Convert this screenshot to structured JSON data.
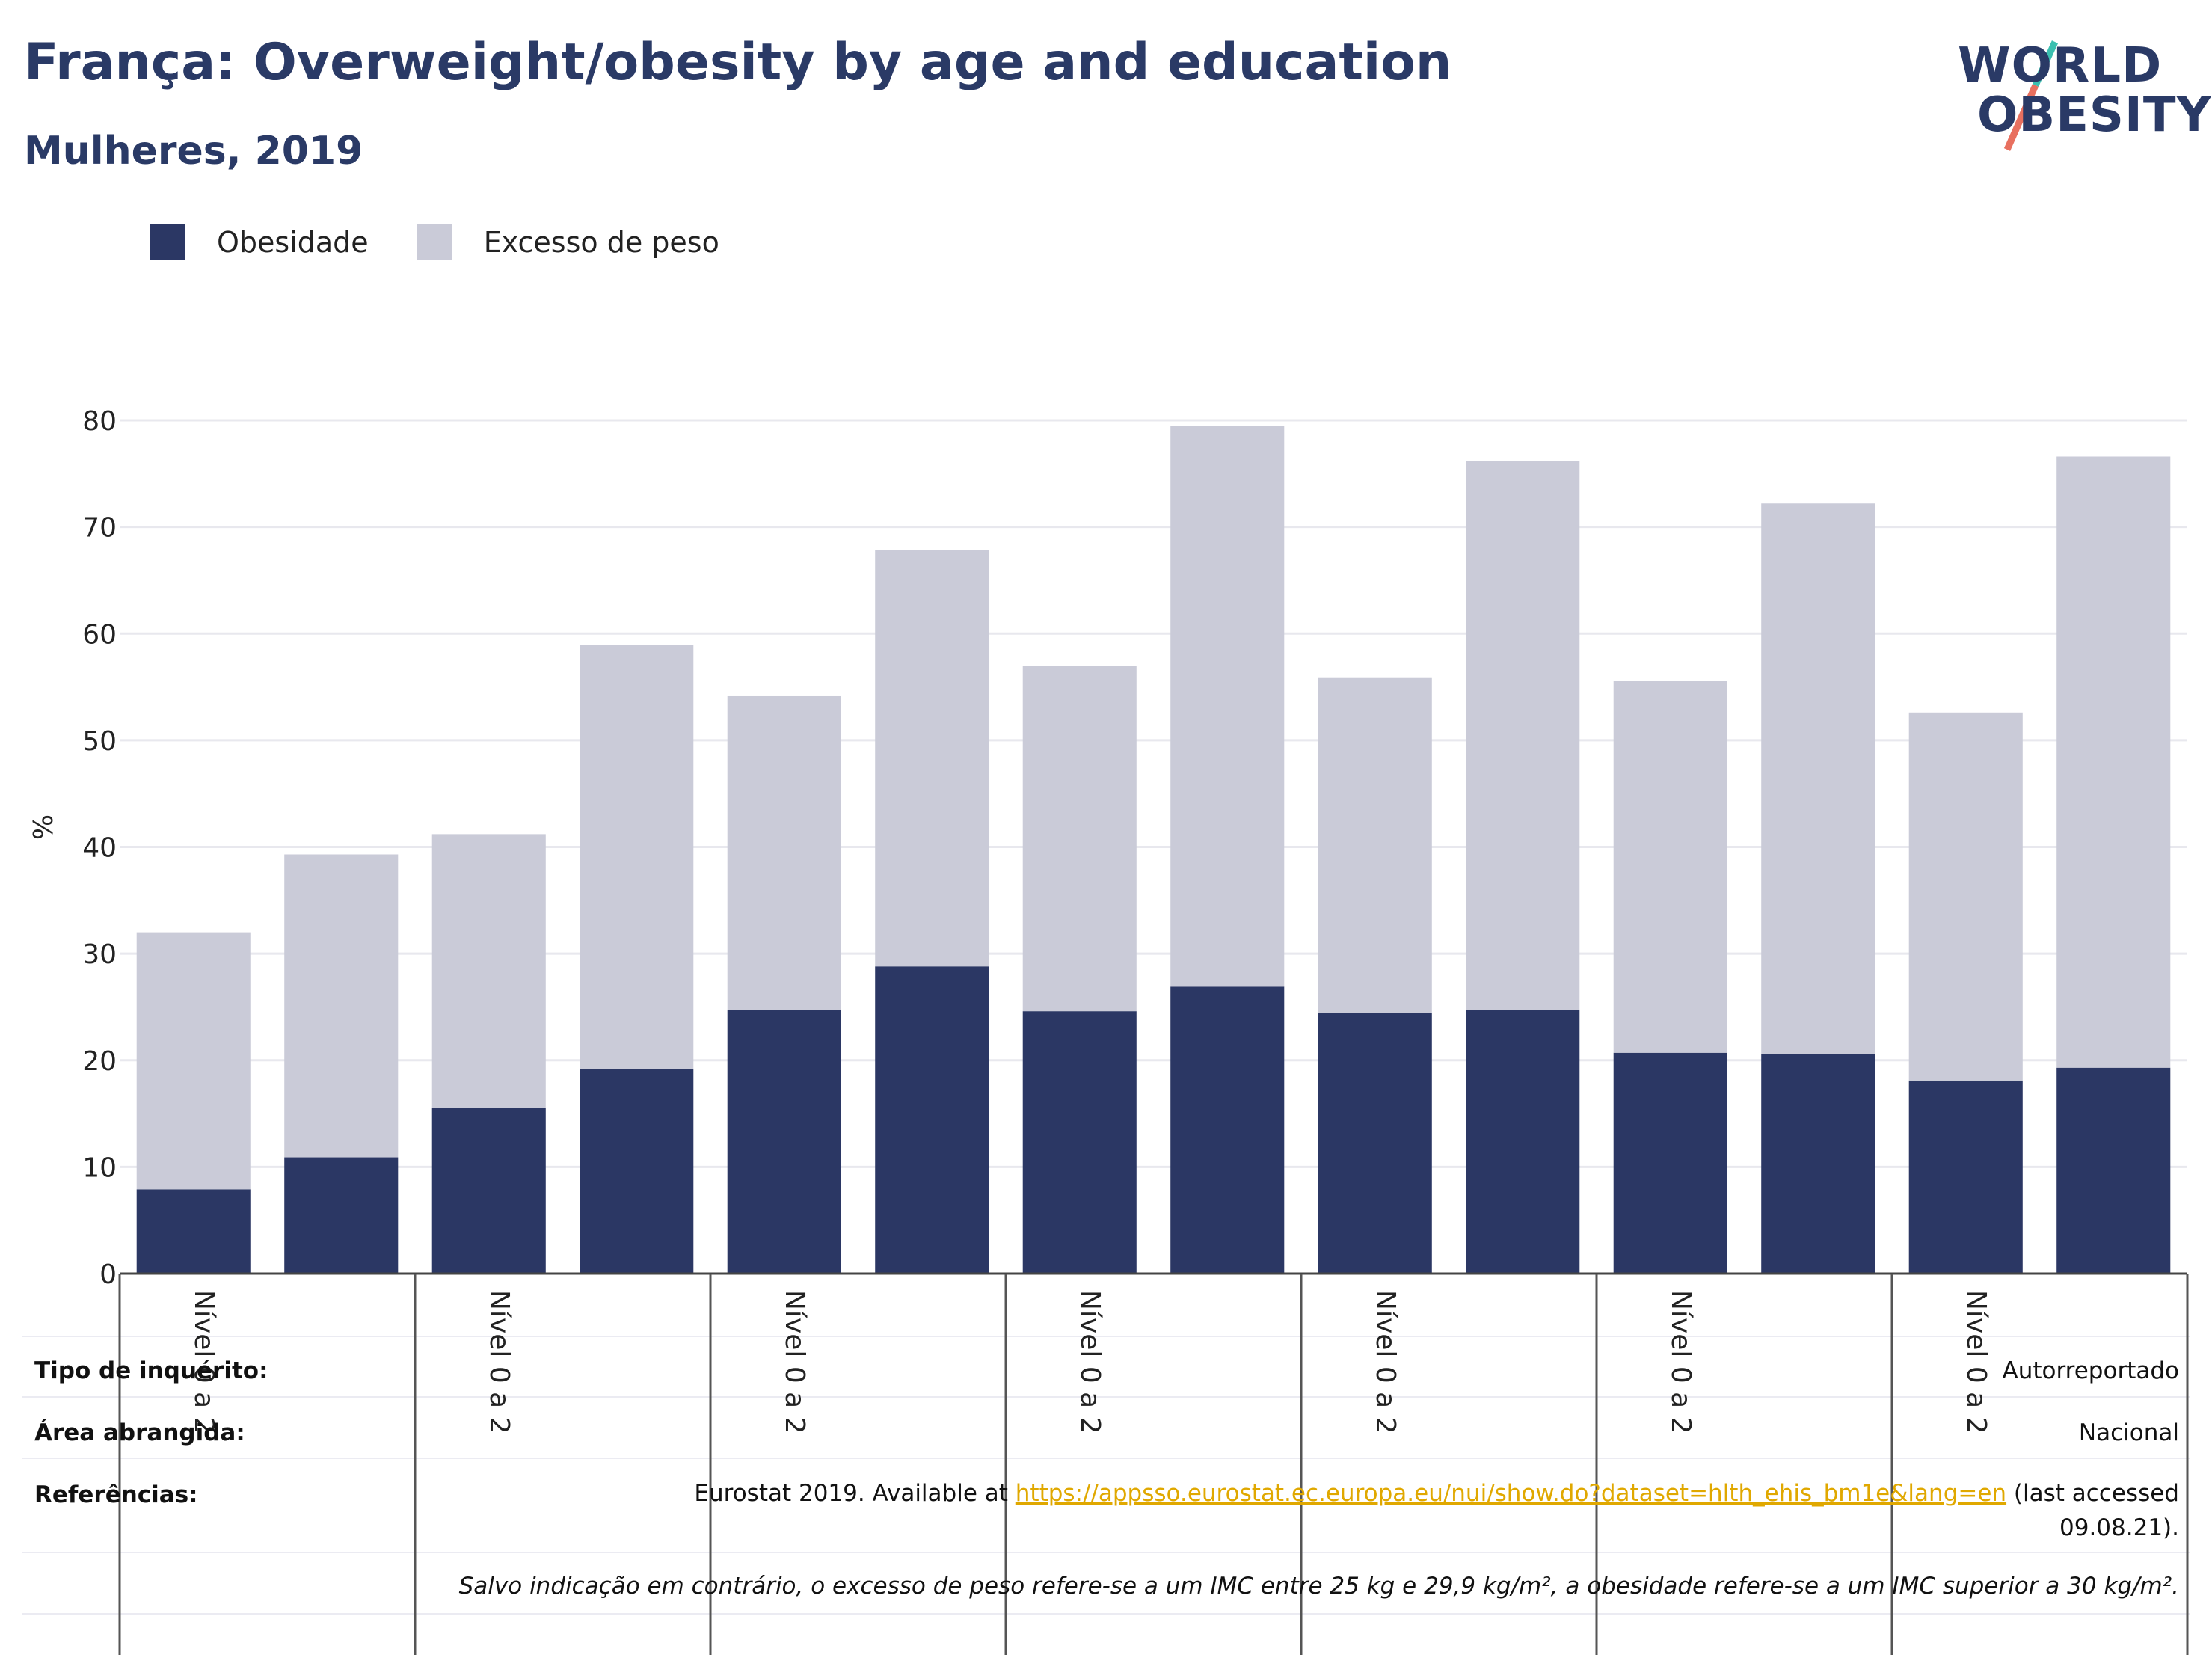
{
  "header": {
    "title": "França: Overweight/obesity by age and education",
    "subtitle": "Mulheres, 2019"
  },
  "logo": {
    "line1": "WORLD",
    "line2": "OBESITY",
    "brand_color": "#2a3a66",
    "slash_colors": [
      "#e8705f",
      "#3bbfb0"
    ]
  },
  "legend": {
    "items": [
      {
        "label": "Obesidade",
        "color": "#2b3764"
      },
      {
        "label": "Excesso de peso",
        "color": "#cacbd8"
      }
    ]
  },
  "chart_data": {
    "type": "bar",
    "stacked": true,
    "ylabel": "%",
    "ylim": [
      0,
      80
    ],
    "yticks": [
      0,
      10,
      20,
      30,
      40,
      50,
      60,
      70,
      80
    ],
    "grid": true,
    "legend_position": "top-left",
    "group_labels": [
      "Nível 0 a 2",
      "Nível 0 a 2",
      "Nível 0 a 2",
      "Nível 0 a 2",
      "Nível 0 a 2",
      "Nível 0 a 2",
      "Nível 0 a 2"
    ],
    "series": [
      {
        "name": "Obesidade",
        "color": "#2b3764",
        "values": [
          7.9,
          10.9,
          15.5,
          19.2,
          24.7,
          28.8,
          24.6,
          26.9,
          24.4,
          24.7,
          20.7,
          20.6,
          18.1,
          19.3
        ]
      },
      {
        "name": "Excesso de peso",
        "color": "#cacbd8",
        "values": [
          24.1,
          28.4,
          25.7,
          39.7,
          29.5,
          39.0,
          32.4,
          52.6,
          31.5,
          51.5,
          34.9,
          51.6,
          34.5,
          57.3
        ]
      }
    ],
    "totals": [
      32.0,
      39.3,
      41.2,
      58.9,
      54.2,
      67.8,
      57.0,
      79.5,
      55.9,
      76.2,
      55.6,
      72.2,
      52.6,
      76.6
    ]
  },
  "meta": {
    "survey_type_label": "Tipo de inquérito:",
    "survey_type_value": "Autorreportado",
    "coverage_label": "Área abrangida:",
    "coverage_value": "Nacional",
    "references_label": "Referências:",
    "references_prefix": "Eurostat 2019. Available at ",
    "references_link": "https://appsso.eurostat.ec.europa.eu/nui/show.do?dataset=hlth_ehis_bm1e&lang=en",
    "references_suffix": " (last accessed 09.08.21).",
    "note": "Salvo indicação em contrário, o excesso de peso refere-se a um IMC entre 25 kg e 29,9 kg/m², a obesidade refere-se a um IMC superior a 30 kg/m²."
  }
}
